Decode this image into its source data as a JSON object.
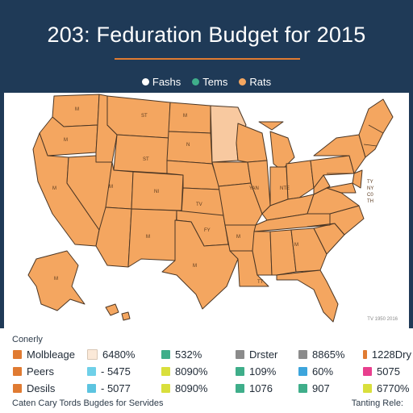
{
  "title": "203: Feduration Budget for 2015",
  "top_legend": [
    {
      "label": "Fashs",
      "color": "#ffffff"
    },
    {
      "label": "Tems",
      "color": "#3fae8a"
    },
    {
      "label": "Rats",
      "color": "#f4a660"
    }
  ],
  "map": {
    "credit": "TV 1950 2016",
    "fill_color": "#f4a660",
    "highlight_color": "#f8c9a0",
    "state_labels": [
      "M",
      "M",
      "M",
      "ST",
      "M",
      "ST",
      "N",
      "M",
      "NI",
      "TV",
      "M",
      "FY",
      "M",
      "M",
      "YAN",
      "NTE",
      "M",
      "TT",
      "M"
    ],
    "overlay_text": [
      "TY",
      "NY",
      "C0",
      "TH"
    ]
  },
  "legend_bottom": {
    "heading": "Conerly",
    "rows": [
      [
        {
          "swatch": "#e07b32",
          "label": "Molbleage"
        },
        {
          "swatch": "#fbe9d8",
          "label": "6480%"
        },
        {
          "swatch": "#3fae8a",
          "label": "532%"
        },
        {
          "swatch": "#8b8b8b",
          "label": "Drster"
        },
        {
          "swatch": "#8b8b8b",
          "label": "8865%"
        },
        {
          "swatch": "#e07b32",
          "label": "1228Dry"
        }
      ],
      [
        {
          "swatch": "#e07b32",
          "label": "Peers"
        },
        {
          "swatch": "#6fd0e8",
          "label": "- 5475"
        },
        {
          "swatch": "#d9df3c",
          "label": "8090%"
        },
        {
          "swatch": "#3fae8a",
          "label": "109%"
        },
        {
          "swatch": "#3da5dc",
          "label": "60%"
        },
        {
          "swatch": "#e83f8e",
          "label": "5075"
        }
      ],
      [
        {
          "swatch": "#e07b32",
          "label": "Desils"
        },
        {
          "swatch": "#5cc4e0",
          "label": "- 5077"
        },
        {
          "swatch": "#d9df3c",
          "label": "8090%"
        },
        {
          "swatch": "#3fae8a",
          "label": "1076"
        },
        {
          "swatch": "#3fae8a",
          "label": "907"
        },
        {
          "swatch": "#d9df3c",
          "label": "6770%"
        }
      ]
    ],
    "footer_left": "Caten Cary Tords Bugdes for Servides",
    "footer_right": "Tanting Rele:"
  }
}
